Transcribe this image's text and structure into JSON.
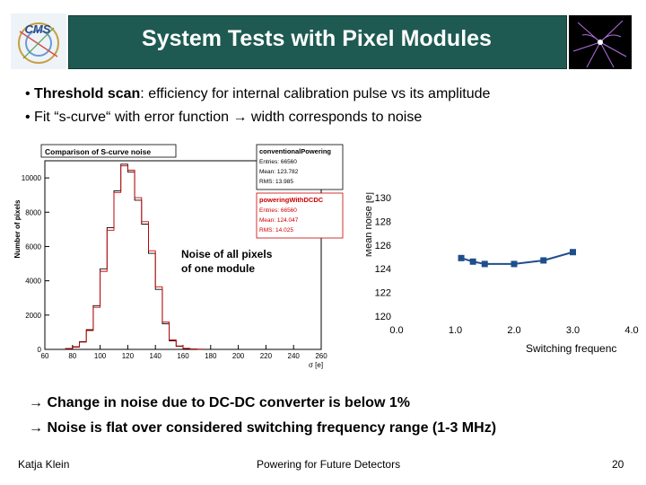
{
  "header": {
    "title": "System Tests with Pixel Modules"
  },
  "bullets": {
    "b1_bold": "Threshold scan",
    "b1_rest": ": efficiency for internal calibration pulse vs its amplitude",
    "b2_pre": "Fit “s-curve“ with error function ",
    "b2_post": " width corresponds to noise"
  },
  "histogram": {
    "title": "Comparison of S-curve noise",
    "ylabel": "Number of pixels",
    "xlabel": "σ [e]",
    "annotation_line1": "Noise of all pixels",
    "annotation_line2": "of one module",
    "stats": [
      {
        "name": "conventionalPowering",
        "entries": "Entries: 66560",
        "mean": "Mean: 123.782",
        "rms": "RMS: 13.985",
        "color": "#000000"
      },
      {
        "name": "poweringWithDCDC",
        "entries": "Entries: 66560",
        "mean": "Mean: 124.047",
        "rms": "RMS: 14.025",
        "color": "#cc0000"
      }
    ],
    "chart_data": {
      "type": "bar",
      "x_range": [
        60,
        260
      ],
      "y_range": [
        0,
        11000
      ],
      "x_ticks": [
        "60",
        "80",
        "100",
        "120",
        "140",
        "160",
        "180",
        "200",
        "220",
        "240",
        "260"
      ],
      "y_ticks": [
        "0",
        "2000",
        "4000",
        "6000",
        "8000",
        "10000"
      ],
      "bin_width": 5,
      "series": [
        {
          "name": "conventionalPowering",
          "color": "#000000",
          "bins": [
            [
              75,
              50
            ],
            [
              80,
              150
            ],
            [
              85,
              450
            ],
            [
              90,
              1150
            ],
            [
              95,
              2550
            ],
            [
              100,
              4700
            ],
            [
              105,
              7100
            ],
            [
              110,
              9250
            ],
            [
              115,
              10800
            ],
            [
              120,
              10350
            ],
            [
              125,
              8700
            ],
            [
              130,
              7300
            ],
            [
              135,
              5600
            ],
            [
              140,
              3500
            ],
            [
              145,
              1500
            ],
            [
              150,
              500
            ],
            [
              155,
              180
            ],
            [
              160,
              50
            ],
            [
              165,
              20
            ],
            [
              170,
              10
            ]
          ]
        },
        {
          "name": "poweringWithDCDC",
          "color": "#cc0000",
          "bins": [
            [
              75,
              40
            ],
            [
              80,
              130
            ],
            [
              85,
              420
            ],
            [
              90,
              1100
            ],
            [
              95,
              2450
            ],
            [
              100,
              4550
            ],
            [
              105,
              6950
            ],
            [
              110,
              9150
            ],
            [
              115,
              10700
            ],
            [
              120,
              10450
            ],
            [
              125,
              8850
            ],
            [
              130,
              7450
            ],
            [
              135,
              5750
            ],
            [
              140,
              3650
            ],
            [
              145,
              1600
            ],
            [
              150,
              550
            ],
            [
              155,
              200
            ],
            [
              160,
              60
            ],
            [
              165,
              25
            ],
            [
              170,
              10
            ]
          ]
        }
      ]
    }
  },
  "right_chart": {
    "chart_data": {
      "type": "line",
      "ylabel": "Mean noise [e]",
      "xlabel": "Switching frequenc",
      "x_range": [
        0,
        4
      ],
      "y_range": [
        120,
        130
      ],
      "x_ticks": [
        "0.0",
        "1.0",
        "2.0",
        "3.0",
        "4.0"
      ],
      "y_ticks": [
        "120",
        "122",
        "124",
        "126",
        "128",
        "130"
      ],
      "series": [
        {
          "color": "#1f4e8c",
          "points": [
            [
              1.1,
              124.9
            ],
            [
              1.3,
              124.6
            ],
            [
              1.5,
              124.4
            ],
            [
              2.0,
              124.4
            ],
            [
              2.5,
              124.7
            ],
            [
              3.0,
              125.4
            ]
          ]
        }
      ]
    }
  },
  "conclusions": {
    "c1": "Change in noise due to DC-DC converter is below 1%",
    "c2": "Noise is flat over considered switching frequency range (1-3 MHz)"
  },
  "footer": {
    "author": "Katja Klein",
    "talk": "Powering for Future Detectors",
    "page": "20"
  },
  "icons": {
    "arrow": "→"
  }
}
